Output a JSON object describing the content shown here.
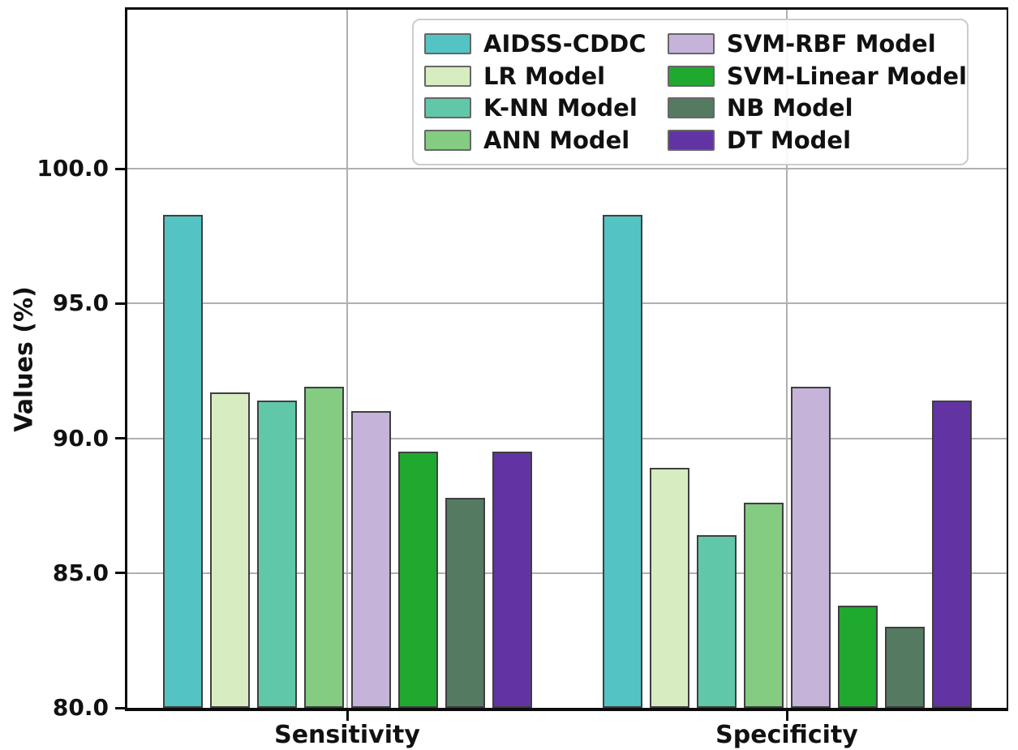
{
  "figure": {
    "y_axis_title": "Values (%)",
    "background_color": "#ffffff",
    "grid_color": "#b0b0b0",
    "bar_edge_color": "#3f3f3f",
    "legend_border_color": "#cccccc"
  },
  "chart_data": {
    "type": "bar",
    "title": "",
    "xlabel": "",
    "ylabel": "Values (%)",
    "categories": [
      "Sensitivity",
      "Specificity"
    ],
    "series": [
      {
        "name": "AIDSS-CDDC",
        "color": "#53c3c4",
        "values": [
          98.3,
          98.3
        ]
      },
      {
        "name": "LR Model",
        "color": "#d7edc1",
        "values": [
          91.7,
          88.9
        ]
      },
      {
        "name": "K-NN Model",
        "color": "#60c8a8",
        "values": [
          91.4,
          86.4
        ]
      },
      {
        "name": "ANN Model",
        "color": "#83cc81",
        "values": [
          91.9,
          87.6
        ]
      },
      {
        "name": "SVM-RBF Model",
        "color": "#c5b3da",
        "values": [
          91.0,
          91.9
        ]
      },
      {
        "name": "SVM-Linear Model",
        "color": "#20a92f",
        "values": [
          89.5,
          83.8
        ]
      },
      {
        "name": "NB Model",
        "color": "#547b61",
        "values": [
          87.8,
          83.0
        ]
      },
      {
        "name": "DT Model",
        "color": "#6234a3",
        "values": [
          89.5,
          91.4
        ]
      }
    ],
    "ylim": [
      80.0,
      105.9
    ],
    "yticks": [
      80.0,
      85.0,
      90.0,
      95.0,
      100.0
    ],
    "ytick_labels": [
      "80.0",
      "85.0",
      "90.0",
      "95.0",
      "100.0"
    ],
    "grid": true,
    "legend_position": "upper center, two columns",
    "legend_columns": [
      [
        "AIDSS-CDDC",
        "LR Model",
        "K-NN Model",
        "ANN Model"
      ],
      [
        "SVM-RBF Model",
        "SVM-Linear Model",
        "NB Model",
        "DT Model"
      ]
    ]
  }
}
